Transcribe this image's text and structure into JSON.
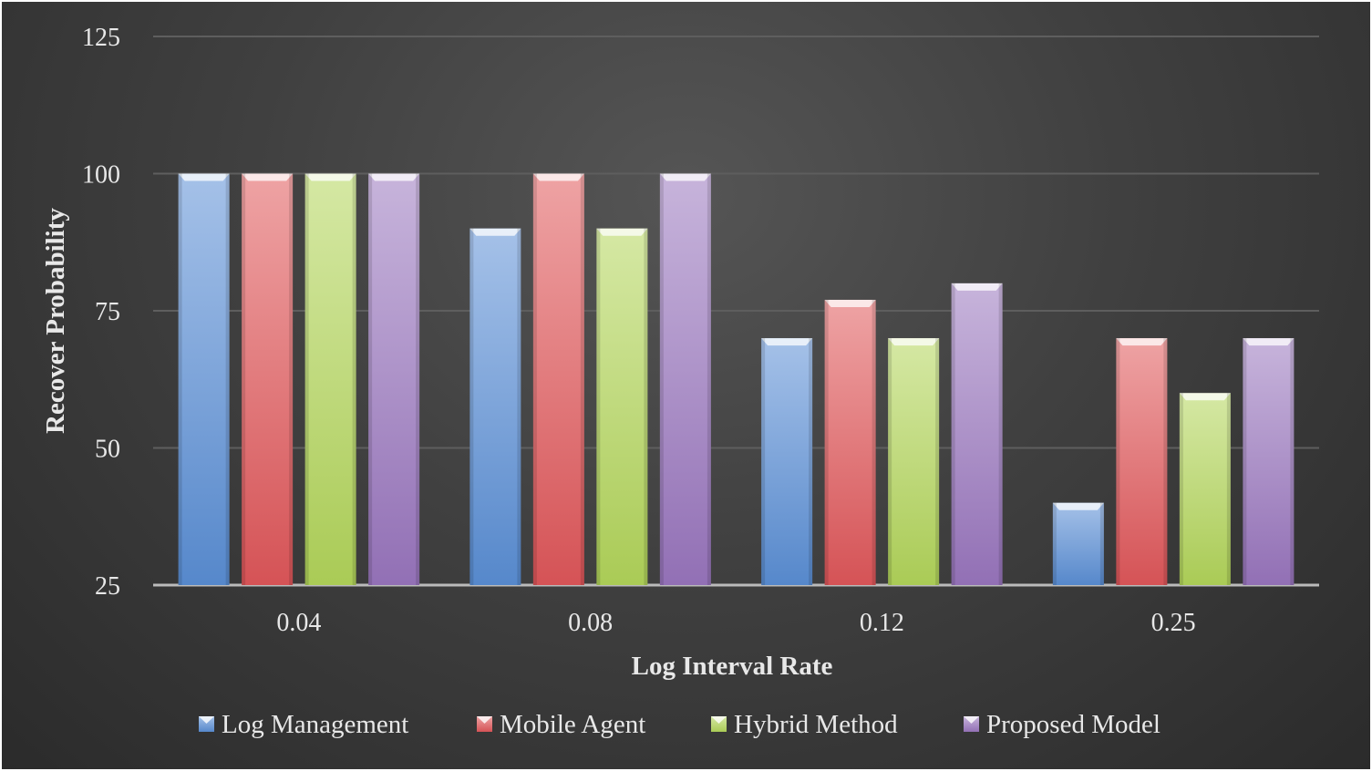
{
  "chart_data": {
    "type": "bar",
    "title": "",
    "xlabel": "Log Interval Rate",
    "ylabel": "Recover Probability",
    "categories": [
      "0.04",
      "0.08",
      "0.12",
      "0.25"
    ],
    "ylim": [
      25,
      125
    ],
    "yticks": [
      "25",
      "50",
      "75",
      "100",
      "125"
    ],
    "grid": true,
    "legend_position": "bottom",
    "series": [
      {
        "name": "Log Management",
        "color": "#5b8fd6",
        "values": [
          100,
          90,
          70,
          40
        ]
      },
      {
        "name": "Mobile Agent",
        "color": "#e0575a",
        "values": [
          100,
          100,
          77,
          70
        ]
      },
      {
        "name": "Hybrid Method",
        "color": "#b3d65a",
        "values": [
          100,
          90,
          70,
          60
        ]
      },
      {
        "name": "Proposed Model",
        "color": "#9a76be",
        "values": [
          100,
          100,
          80,
          70
        ]
      }
    ]
  }
}
